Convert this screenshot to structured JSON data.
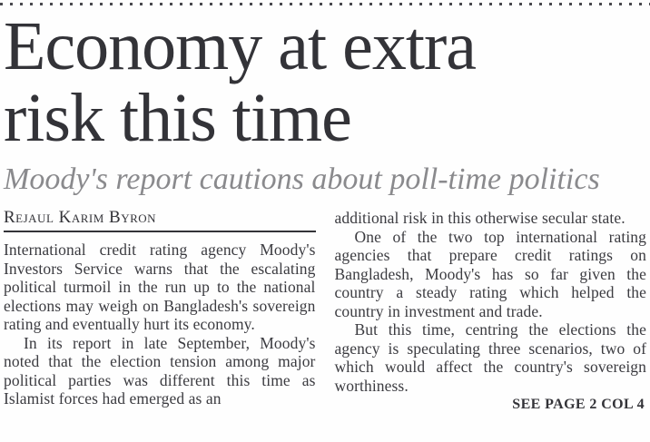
{
  "masthead": {
    "dotted_rule": "decorative dotted separator"
  },
  "header": {
    "headline_lines": [
      "Economy at extra",
      "risk this time"
    ],
    "subheadline": "Moody's report cautions about poll-time politics",
    "byline": "Rejaul Karim Byron"
  },
  "article": {
    "column1": [
      "International credit rating agency Moody's Investors Service warns that the escalating political turmoil in the run up to the national elections may weigh on Bangladesh's sovereign rating and eventually hurt its economy.",
      "In its report in late September, Moody's noted that the election tension among major political parties was different this time as Islamist forces had emerged as an"
    ],
    "column2": [
      "additional risk in this otherwise secular state.",
      "One of the two top international rating agencies that prepare credit ratings on Bangladesh, Moody's has so far given the country a steady rating which helped the country in investment and trade.",
      "But this time, centring the elections the agency is speculating three scenarios, two of which would affect the country's sovereign worthiness."
    ],
    "continuation": "SEE PAGE 2 COL 4"
  },
  "colors": {
    "paper": "#fefefe",
    "ink-dark": "#333338",
    "ink-body": "#3b3b40",
    "ink-gray": "#8a8a8d",
    "rule": "#4a4a4f"
  }
}
